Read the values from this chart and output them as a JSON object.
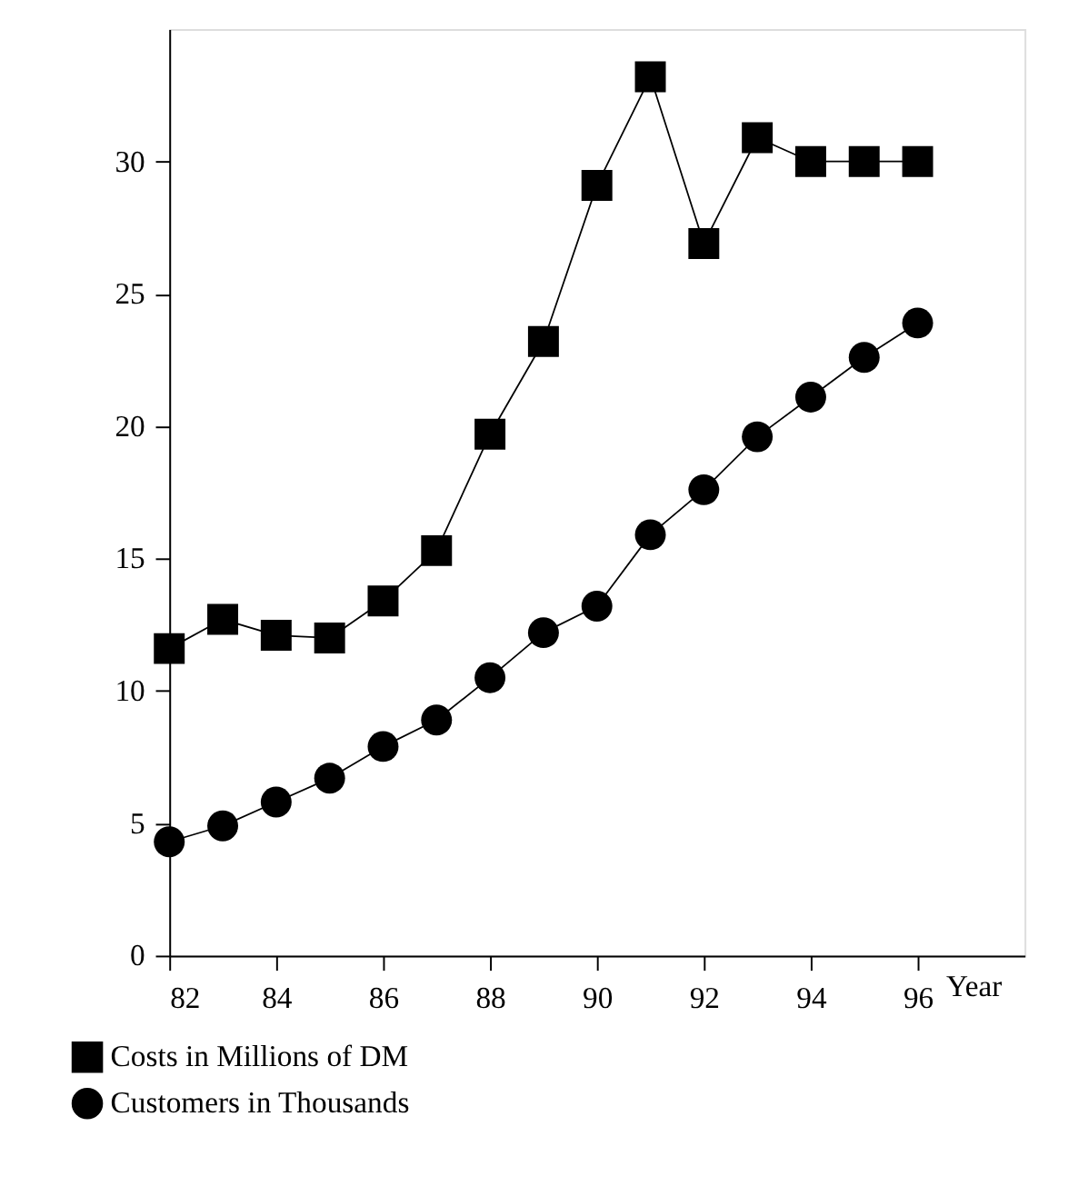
{
  "chart_data": {
    "type": "line",
    "x": [
      82,
      83,
      84,
      85,
      86,
      87,
      88,
      89,
      90,
      91,
      92,
      93,
      94,
      95,
      96
    ],
    "series": [
      {
        "name": "Costs in Millions of DM",
        "color": "#000000",
        "marker": "square",
        "values": [
          11.6,
          12.7,
          12.1,
          12.0,
          13.4,
          15.3,
          19.7,
          23.2,
          29.1,
          33.2,
          26.9,
          30.9,
          30,
          30,
          30
        ]
      },
      {
        "name": "Customers in Thousands",
        "color": "#000000",
        "marker": "circle",
        "values": [
          4.3,
          4.9,
          5.8,
          6.7,
          7.9,
          8.9,
          10.5,
          12.2,
          13.2,
          15.9,
          17.6,
          19.6,
          21.1,
          22.6,
          23.9
        ]
      }
    ],
    "xlabel": "Year",
    "xlim": [
      82,
      98
    ],
    "xticks": [
      82,
      84,
      86,
      88,
      90,
      92,
      94,
      96
    ],
    "ylim": [
      0,
      35
    ],
    "yticks": [
      0,
      5,
      10,
      15,
      20,
      25,
      30
    ],
    "grid": false,
    "legend": "bottom left"
  }
}
